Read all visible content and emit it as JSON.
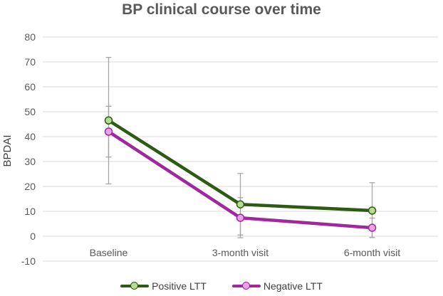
{
  "chart_data": {
    "type": "line",
    "title": "BP clinical course over time",
    "xlabel": "",
    "ylabel": "BPDAI",
    "categories": [
      "Baseline",
      "3-month visit",
      "6-month visit"
    ],
    "ylim": [
      -10,
      80
    ],
    "yticks": [
      -10,
      0,
      10,
      20,
      30,
      40,
      50,
      60,
      70,
      80
    ],
    "grid": true,
    "legend_position": "bottom",
    "series": [
      {
        "name": "Positive LTT",
        "values": [
          46.5,
          12.8,
          10.3
        ],
        "error_low": [
          21,
          0.5,
          -0.5
        ],
        "error_high": [
          71.8,
          25.2,
          21.5
        ],
        "line_color": "#2E5B14",
        "marker_fill": "#B6DB91"
      },
      {
        "name": "Negative LTT",
        "values": [
          42,
          7.4,
          3.4
        ],
        "error_low": [
          31.8,
          -0.6,
          -0.5
        ],
        "error_high": [
          52.2,
          15.5,
          7.3
        ],
        "line_color": "#A0279E",
        "marker_fill": "#E9A3E5"
      }
    ]
  }
}
